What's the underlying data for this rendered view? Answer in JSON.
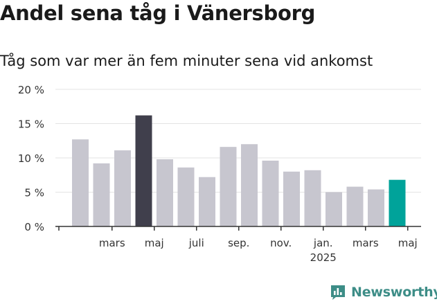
{
  "title": "Andel sena tåg i Vänersborg",
  "subtitle": "Tåg som var mer än fem minuter sena vid ankomst",
  "brand": {
    "name": "Newsworthy",
    "color": "#3d8d87",
    "icon": "bar-chart-speech-icon"
  },
  "colors": {
    "bar": "#c7c6cf",
    "highlight_dark": "#403f4c",
    "highlight_teal": "#00a39a",
    "grid": "#e3e3e3",
    "axis": "#333333"
  },
  "chart_data": {
    "type": "bar",
    "ylim": [
      0,
      20
    ],
    "y_ticks": [
      {
        "value": 0,
        "label": "0 %"
      },
      {
        "value": 5,
        "label": "5 %"
      },
      {
        "value": 10,
        "label": "10 %"
      },
      {
        "value": 15,
        "label": "15 %"
      },
      {
        "value": 20,
        "label": "20 %"
      }
    ],
    "values": [
      12.7,
      9.2,
      11.1,
      16.2,
      9.8,
      8.6,
      7.2,
      11.6,
      12.0,
      9.6,
      8.0,
      8.2,
      5.0,
      5.8,
      5.4,
      6.8
    ],
    "highlight": {
      "3": "dark",
      "15": "teal"
    },
    "x_labels": [
      {
        "index": 1.5,
        "lines": [
          "mars"
        ]
      },
      {
        "index": 3.5,
        "lines": [
          "maj"
        ]
      },
      {
        "index": 5.5,
        "lines": [
          "juli"
        ]
      },
      {
        "index": 7.5,
        "lines": [
          "sep."
        ]
      },
      {
        "index": 9.5,
        "lines": [
          "nov."
        ]
      },
      {
        "index": 11.5,
        "lines": [
          "jan.",
          "2025"
        ]
      },
      {
        "index": 13.5,
        "lines": [
          "mars"
        ]
      },
      {
        "index": 15.5,
        "lines": [
          "maj"
        ]
      }
    ],
    "x_ticks": [
      1.5,
      3.5,
      5.5,
      7.5,
      9.5,
      11.5,
      13.5,
      15.5
    ],
    "grid": true
  }
}
